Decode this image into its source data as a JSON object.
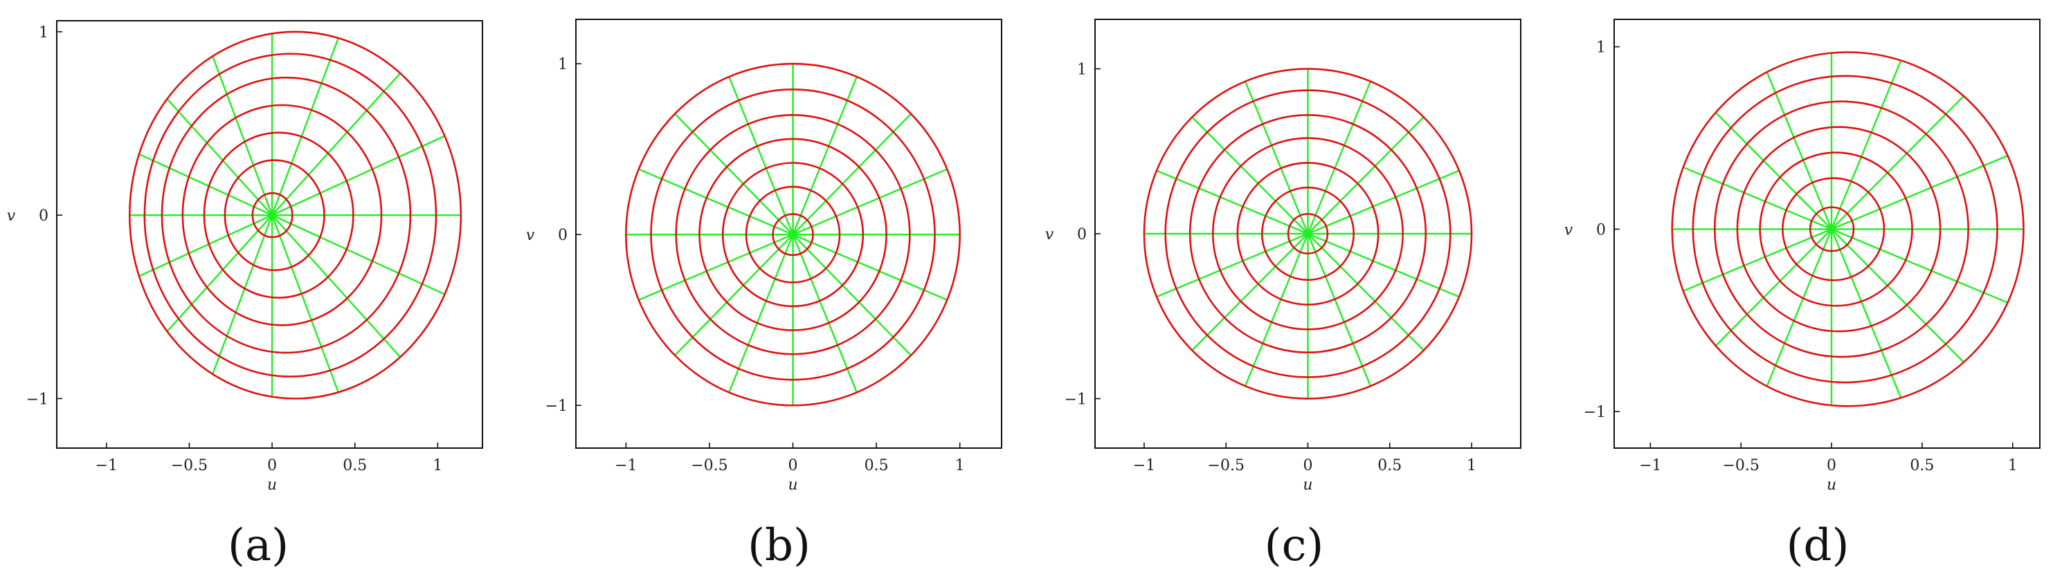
{
  "colors": {
    "circles": "#e01010",
    "radials": "#22ee22",
    "frame": "#111111"
  },
  "chart_data": [
    {
      "type": "line",
      "caption": "(a)",
      "xlabel": "u",
      "ylabel": "v",
      "xlim": [
        -1.3,
        1.27
      ],
      "ylim": [
        -1.27,
        1.06
      ],
      "xticks": [
        -1,
        -0.5,
        0,
        0.5,
        1
      ],
      "xtick_labels": [
        "−1",
        "−0.5",
        "0",
        "0.5",
        "1"
      ],
      "yticks": [
        -1,
        0,
        1
      ],
      "ytick_labels": [
        "−1",
        "0",
        "1"
      ],
      "center": [
        0,
        0
      ],
      "circles": [
        {
          "cx": 0.002,
          "r": 0.12
        },
        {
          "cx": 0.015,
          "r": 0.3
        },
        {
          "cx": 0.04,
          "r": 0.45
        },
        {
          "cx": 0.06,
          "r": 0.6
        },
        {
          "cx": 0.085,
          "r": 0.75
        },
        {
          "cx": 0.11,
          "r": 0.88
        },
        {
          "cx": 0.14,
          "r": 1.0
        }
      ],
      "radial_count": 16
    },
    {
      "type": "line",
      "caption": "(b)",
      "xlabel": "u",
      "ylabel": "v",
      "xlim": [
        -1.3,
        1.25
      ],
      "ylim": [
        -1.25,
        1.26
      ],
      "xticks": [
        -1,
        -0.5,
        0,
        0.5,
        1
      ],
      "xtick_labels": [
        "−1",
        "−0.5",
        "0",
        "0.5",
        "1"
      ],
      "yticks": [
        -1,
        0,
        1
      ],
      "ytick_labels": [
        "−1",
        "0",
        "1"
      ],
      "center": [
        0,
        0
      ],
      "circles": [
        {
          "cx": 0,
          "r": 0.12
        },
        {
          "cx": 0,
          "r": 0.28
        },
        {
          "cx": 0,
          "r": 0.42
        },
        {
          "cx": 0,
          "r": 0.56
        },
        {
          "cx": 0,
          "r": 0.7
        },
        {
          "cx": 0,
          "r": 0.85
        },
        {
          "cx": 0,
          "r": 1.0
        }
      ],
      "radial_count": 16
    },
    {
      "type": "line",
      "caption": "(c)",
      "xlabel": "u",
      "ylabel": "v",
      "xlim": [
        -1.3,
        1.3
      ],
      "ylim": [
        -1.3,
        1.3
      ],
      "xticks": [
        -1,
        -0.5,
        0,
        0.5,
        1
      ],
      "xtick_labels": [
        "−1",
        "−0.5",
        "0",
        "0.5",
        "1"
      ],
      "yticks": [
        -1,
        0,
        1
      ],
      "ytick_labels": [
        "−1",
        "0",
        "1"
      ],
      "center": [
        0,
        0
      ],
      "circles": [
        {
          "cx": 0,
          "r": 0.12
        },
        {
          "cx": 0,
          "r": 0.28
        },
        {
          "cx": 0,
          "r": 0.43
        },
        {
          "cx": 0,
          "r": 0.58
        },
        {
          "cx": 0,
          "r": 0.72
        },
        {
          "cx": 0,
          "r": 0.87
        },
        {
          "cx": 0,
          "r": 1.0
        }
      ],
      "radial_count": 16
    },
    {
      "type": "line",
      "caption": "(d)",
      "xlabel": "u",
      "ylabel": "v",
      "xlim": [
        -1.2,
        1.15
      ],
      "ylim": [
        -1.2,
        1.15
      ],
      "xticks": [
        -1,
        -0.5,
        0,
        0.5,
        1
      ],
      "xtick_labels": [
        "−1",
        "−0.5",
        "0",
        "0.5",
        "1"
      ],
      "yticks": [
        -1,
        0,
        1
      ],
      "ytick_labels": [
        "−1",
        "0",
        "1"
      ],
      "center": [
        0,
        0
      ],
      "circles": [
        {
          "cx": 0.002,
          "r": 0.12
        },
        {
          "cx": 0.01,
          "r": 0.28
        },
        {
          "cx": 0.025,
          "r": 0.42
        },
        {
          "cx": 0.04,
          "r": 0.56
        },
        {
          "cx": 0.055,
          "r": 0.7
        },
        {
          "cx": 0.075,
          "r": 0.84
        },
        {
          "cx": 0.09,
          "r": 0.97
        }
      ],
      "radial_count": 16
    }
  ]
}
